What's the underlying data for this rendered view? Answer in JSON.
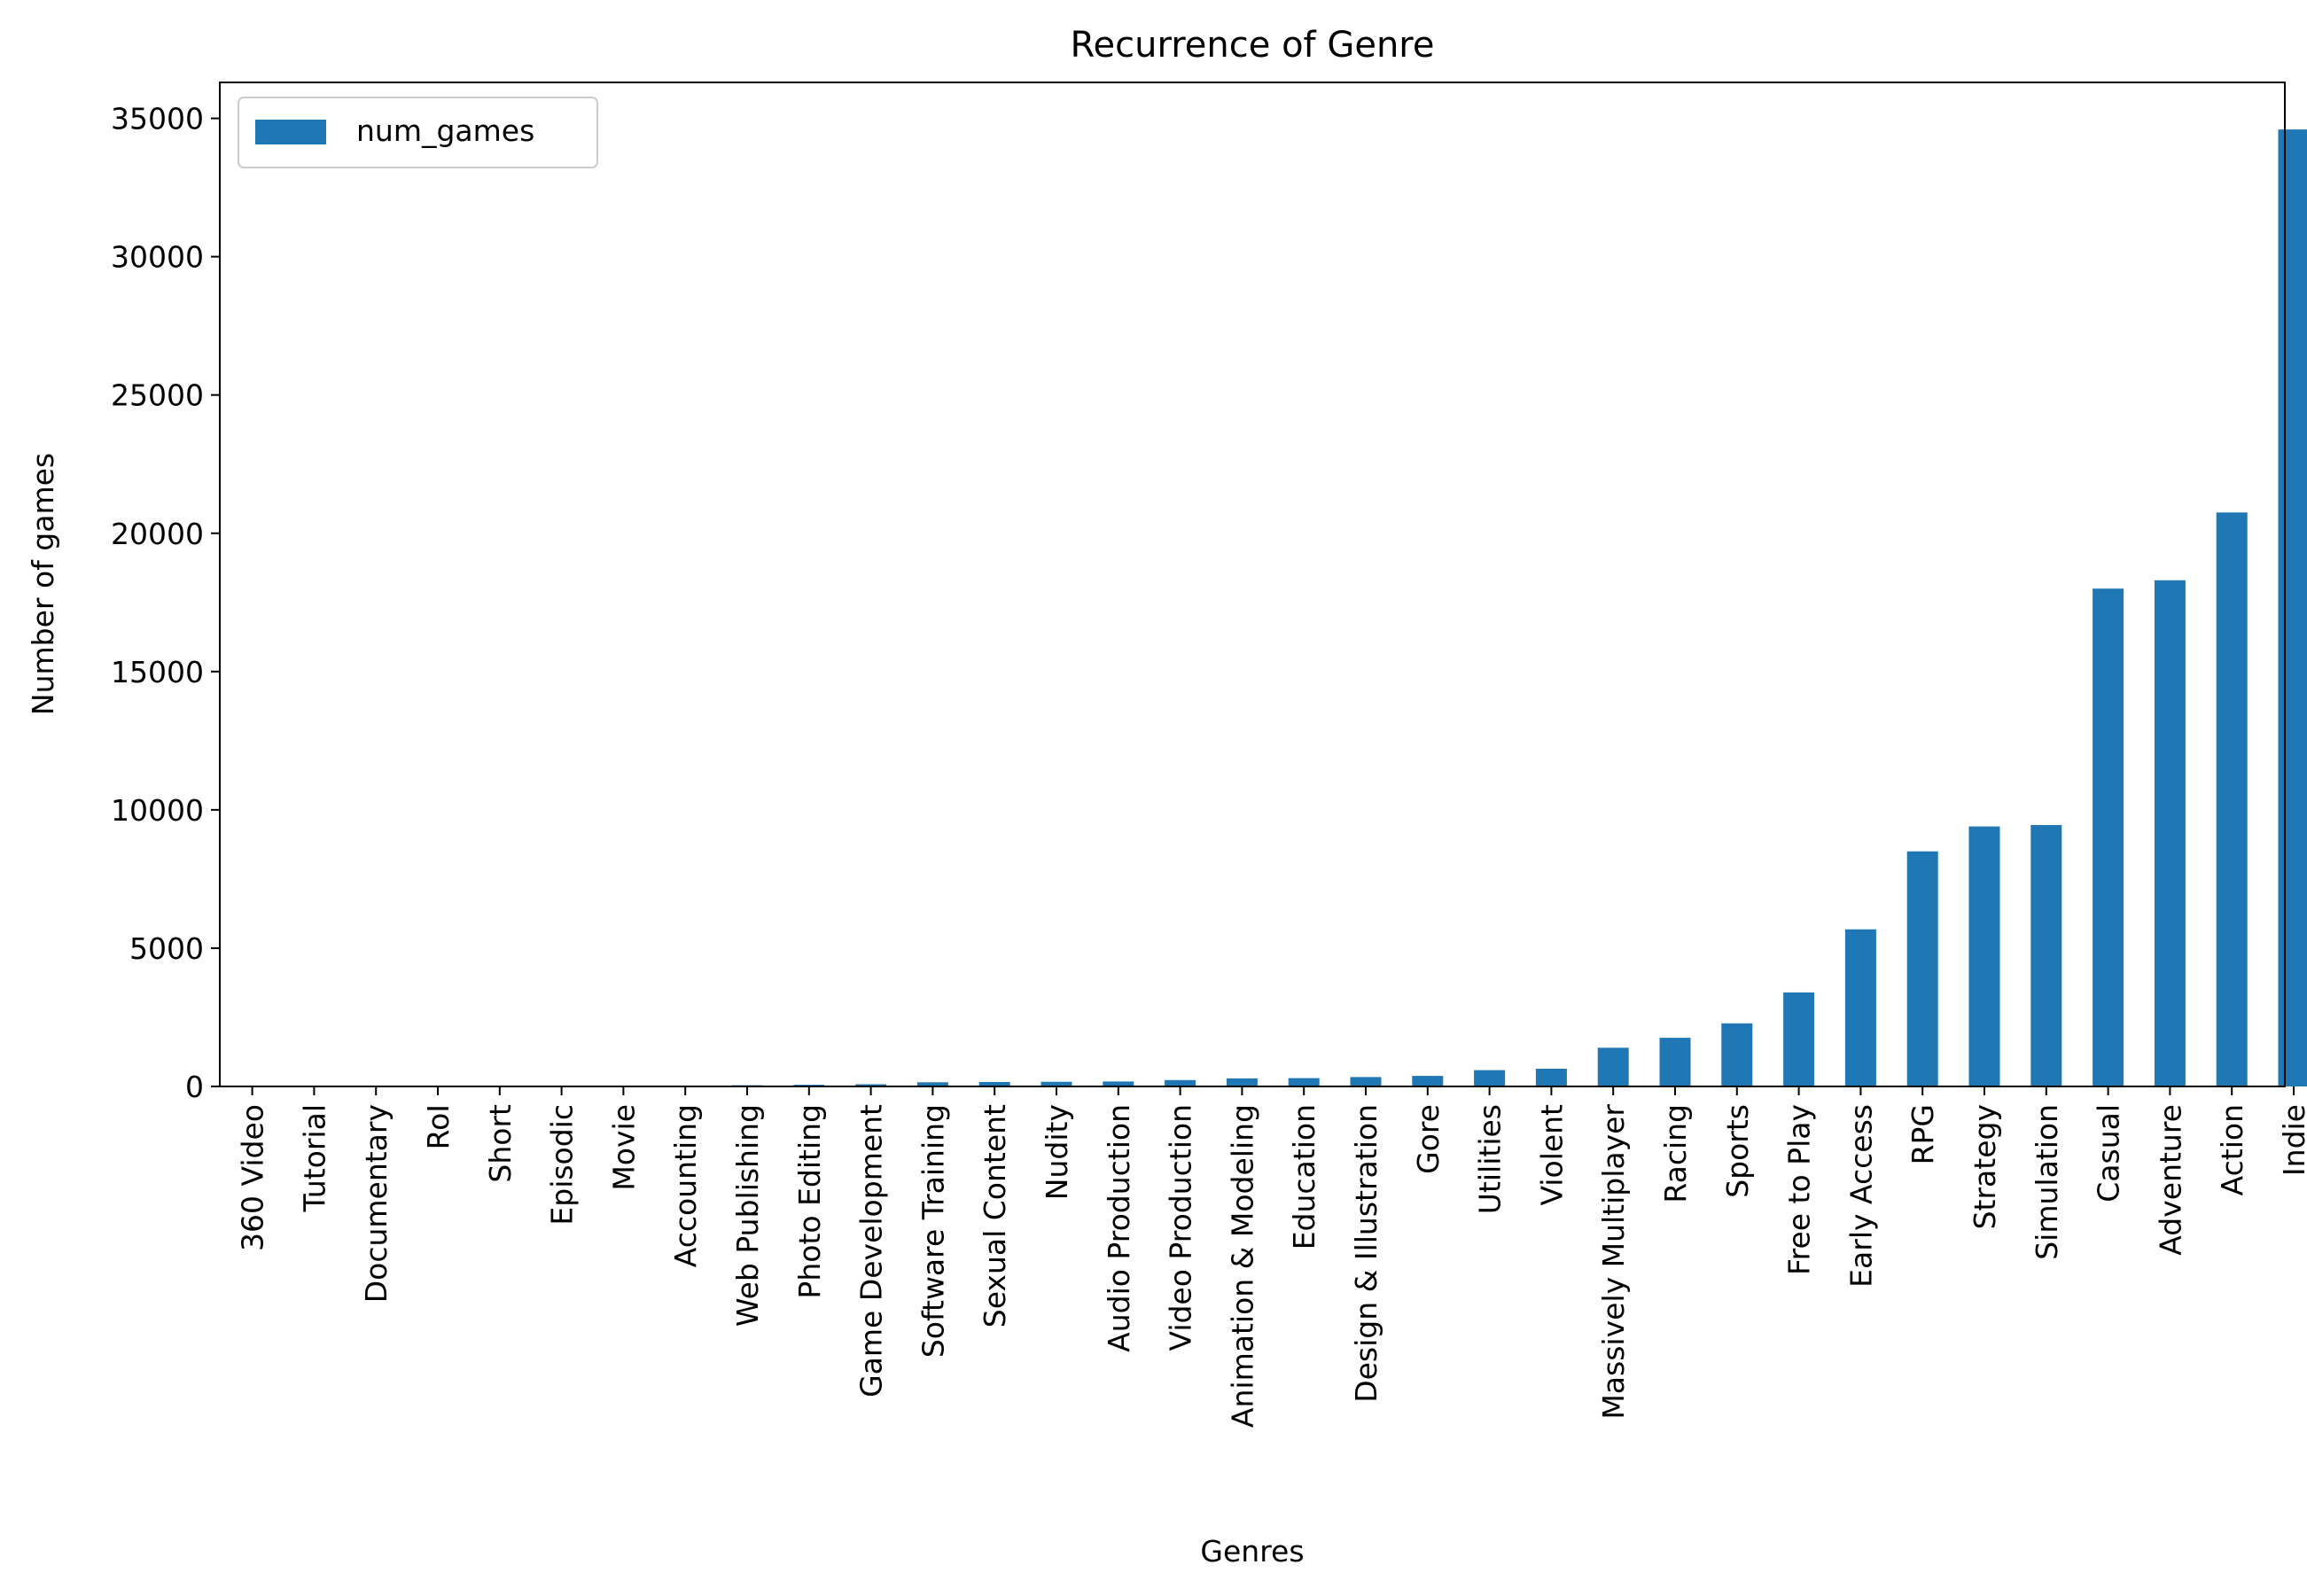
{
  "chart_data": {
    "type": "bar",
    "title": "Recurrence of Genre",
    "xlabel": "Genres",
    "ylabel": "Number of games",
    "ylim": [
      0,
      36300
    ],
    "yticks": [
      0,
      5000,
      10000,
      15000,
      20000,
      25000,
      30000,
      35000
    ],
    "legend": "top-left",
    "grid": false,
    "color": "#1f77b4",
    "categories": [
      "360 Video",
      "Tutorial",
      "Documentary",
      "RoI",
      "Short",
      "Episodic",
      "Movie",
      "Accounting",
      "Web Publishing",
      "Photo Editing",
      "Game Development",
      "Software Training",
      "Sexual Content",
      "Nudity",
      "Audio Production",
      "Video Production",
      "Animation & Modeling",
      "Education",
      "Design & Illustration",
      "Gore",
      "Utilities",
      "Violent",
      "Massively Multiplayer",
      "Racing",
      "Sports",
      "Free to Play",
      "Early Access",
      "RPG",
      "Strategy",
      "Simulation",
      "Casual",
      "Adventure",
      "Action",
      "Indie"
    ],
    "series": [
      {
        "name": "num_games",
        "values": [
          3,
          3,
          5,
          5,
          7,
          10,
          11,
          15,
          45,
          60,
          80,
          150,
          160,
          170,
          180,
          230,
          290,
          300,
          340,
          380,
          590,
          640,
          1400,
          1760,
          2280,
          3400,
          5680,
          8500,
          9400,
          9450,
          18000,
          18300,
          20750,
          34600
        ]
      }
    ]
  }
}
